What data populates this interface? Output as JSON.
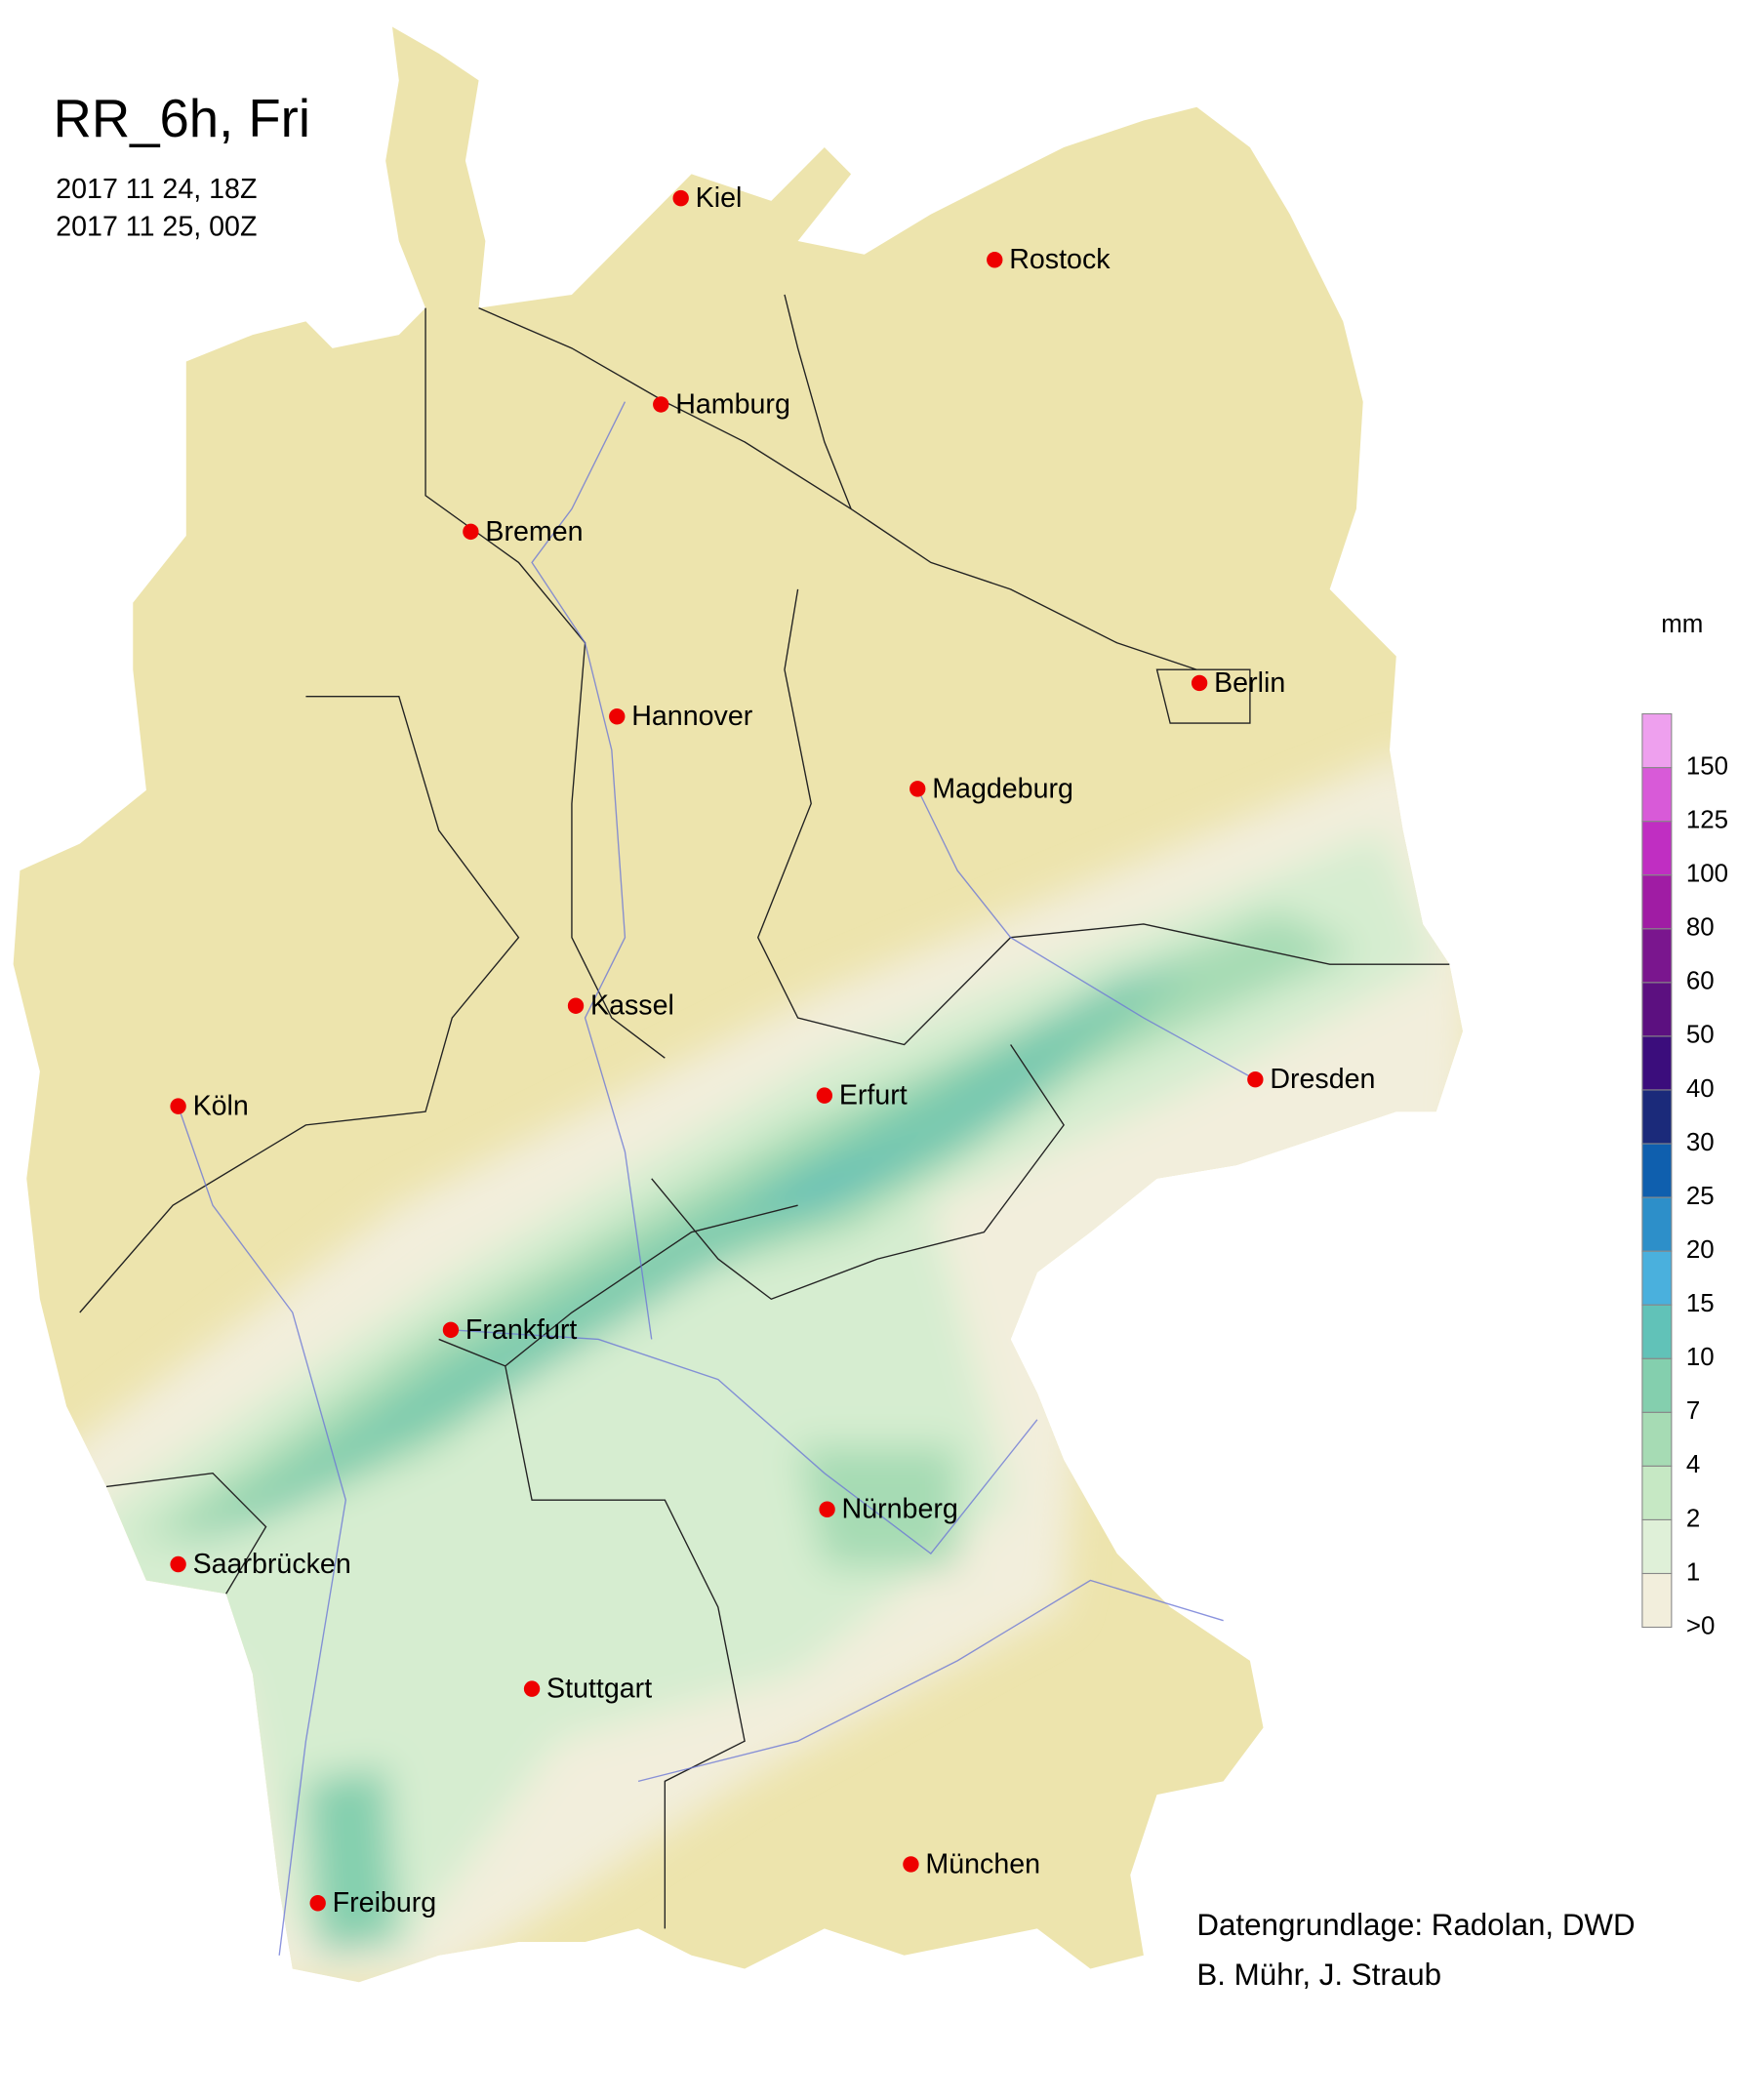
{
  "header": {
    "title": "RR_6h, Fri",
    "dates": [
      "2017 11 24, 18Z",
      "2017 11 25, 00Z"
    ]
  },
  "cities": [
    "Kiel",
    "Rostock",
    "Hamburg",
    "Bremen",
    "Hannover",
    "Berlin",
    "Magdeburg",
    "Kassel",
    "Köln",
    "Erfurt",
    "Dresden",
    "Frankfurt",
    "Nürnberg",
    "Saarbrücken",
    "Stuttgart",
    "Freiburg",
    "München"
  ],
  "legend": {
    "unit": "mm",
    "colors": [
      "#f2eedc",
      "#dff0d8",
      "#c6e8c4",
      "#a6dbb4",
      "#84cfae",
      "#61c2b8",
      "#4ab0dd",
      "#2d8fc9",
      "#0f5fae",
      "#1b2a7a",
      "#3b0d7c",
      "#5c1080",
      "#7a168e",
      "#a01ca4",
      "#c02ec2",
      "#d85ad8",
      "#eea0ee"
    ],
    "labels": [
      ">0",
      1,
      2,
      4,
      7,
      10,
      15,
      20,
      25,
      30,
      40,
      50,
      60,
      80,
      100,
      125,
      150
    ]
  },
  "credits": [
    "Datengrundlage: Radolan, DWD",
    "B. Mühr, J. Straub"
  ]
}
